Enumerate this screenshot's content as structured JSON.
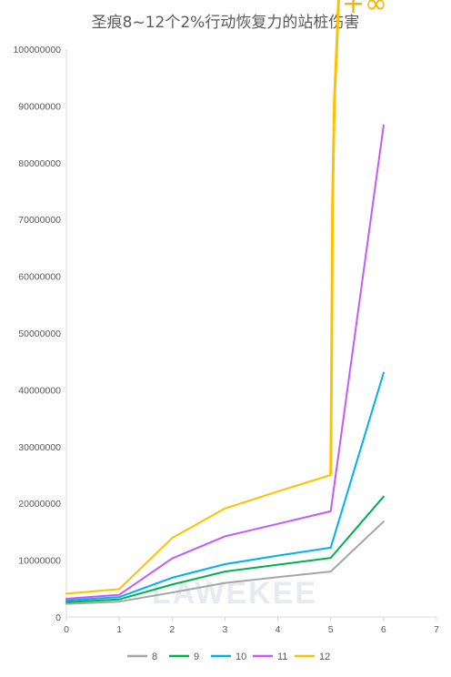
{
  "chart_data": {
    "type": "line",
    "title": "圣痕8~12个2%行动恢复力的站桩伤害",
    "xlabel": "",
    "ylabel": "",
    "xlim": [
      0,
      7
    ],
    "ylim": [
      0,
      100000000
    ],
    "x_ticks": [
      "0",
      "1",
      "2",
      "3",
      "4",
      "5",
      "6",
      "7"
    ],
    "y_ticks": [
      "0",
      "10000000",
      "20000000",
      "30000000",
      "40000000",
      "50000000",
      "60000000",
      "70000000",
      "80000000",
      "90000000",
      "100000000"
    ],
    "grid": "horizontal-off",
    "legend": "bottom",
    "annotation": "+∞",
    "watermark": "LAWEKEE",
    "series": [
      {
        "name": "8",
        "color": "#a5a5a5",
        "x": [
          0,
          1,
          2,
          3,
          4,
          5,
          6
        ],
        "y": [
          2300000,
          2700000,
          4300000,
          6000000,
          7000000,
          8000000,
          16800000
        ]
      },
      {
        "name": "9",
        "color": "#00b050",
        "x": [
          0,
          1,
          2,
          3,
          4,
          5,
          6
        ],
        "y": [
          2600000,
          3100000,
          5700000,
          8000000,
          9200000,
          10400000,
          21200000
        ]
      },
      {
        "name": "10",
        "color": "#00b0f0",
        "x": [
          0,
          1,
          2,
          3,
          4,
          5,
          6
        ],
        "y": [
          2900000,
          3500000,
          6900000,
          9300000,
          10800000,
          12200000,
          43000000
        ]
      },
      {
        "name": "11",
        "color": "#c659f8",
        "x": [
          0,
          1,
          2,
          3,
          4,
          5,
          6
        ],
        "y": [
          3200000,
          3900000,
          10300000,
          14200000,
          16400000,
          18600000,
          86600000
        ]
      },
      {
        "name": "12",
        "color": "#ffc000",
        "x": [
          0,
          1,
          2,
          3,
          4,
          5
        ],
        "y": [
          4100000,
          4900000,
          13900000,
          19100000,
          22100000,
          25000000
        ]
      }
    ]
  }
}
